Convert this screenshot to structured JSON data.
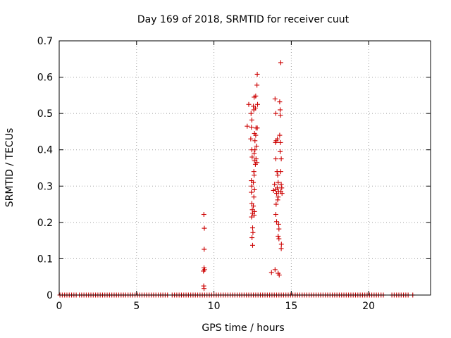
{
  "chart_data": {
    "type": "scatter",
    "title": "Day 169 of 2018, SRMTID for receiver cuut",
    "xlabel": "GPS time / hours",
    "ylabel": "SRMTID / TECUs",
    "xlim": [
      0,
      24
    ],
    "ylim": [
      0,
      0.7
    ],
    "xticks": [
      0,
      5,
      10,
      15,
      20
    ],
    "yticks": [
      0,
      0.1,
      0.2,
      0.3,
      0.4,
      0.5,
      0.6,
      0.7
    ],
    "xtick_labels": [
      "0",
      "5",
      "10",
      "15",
      "20"
    ],
    "ytick_labels": [
      "0",
      "0.1",
      "0.2",
      "0.3",
      "0.4",
      "0.5",
      "0.6",
      "0.7"
    ],
    "grid": true,
    "marker": "+",
    "color": "#cc0000",
    "series": [
      {
        "name": "SRMTID",
        "points": [
          [
            9.35,
            0.222
          ],
          [
            9.38,
            0.184
          ],
          [
            9.37,
            0.126
          ],
          [
            9.36,
            0.075
          ],
          [
            9.32,
            0.066
          ],
          [
            9.4,
            0.07
          ],
          [
            9.34,
            0.025
          ],
          [
            9.36,
            0.018
          ],
          [
            12.15,
            0.465
          ],
          [
            12.25,
            0.525
          ],
          [
            12.4,
            0.5
          ],
          [
            12.45,
            0.482
          ],
          [
            12.42,
            0.462
          ],
          [
            12.38,
            0.43
          ],
          [
            12.45,
            0.4
          ],
          [
            12.47,
            0.38
          ],
          [
            12.42,
            0.315
          ],
          [
            12.44,
            0.3
          ],
          [
            12.42,
            0.283
          ],
          [
            12.45,
            0.252
          ],
          [
            12.48,
            0.235
          ],
          [
            12.5,
            0.225
          ],
          [
            12.43,
            0.215
          ],
          [
            12.5,
            0.185
          ],
          [
            12.52,
            0.172
          ],
          [
            12.46,
            0.158
          ],
          [
            12.5,
            0.137
          ],
          [
            12.55,
            0.52
          ],
          [
            12.58,
            0.51
          ],
          [
            12.6,
            0.545
          ],
          [
            12.62,
            0.445
          ],
          [
            12.65,
            0.425
          ],
          [
            12.6,
            0.39
          ],
          [
            12.62,
            0.37
          ],
          [
            12.58,
            0.34
          ],
          [
            12.6,
            0.33
          ],
          [
            12.55,
            0.31
          ],
          [
            12.62,
            0.29
          ],
          [
            12.58,
            0.27
          ],
          [
            12.55,
            0.245
          ],
          [
            12.62,
            0.23
          ],
          [
            12.6,
            0.22
          ],
          [
            12.68,
            0.515
          ],
          [
            12.7,
            0.548
          ],
          [
            12.72,
            0.46
          ],
          [
            12.7,
            0.44
          ],
          [
            12.75,
            0.41
          ],
          [
            12.72,
            0.375
          ],
          [
            12.68,
            0.36
          ],
          [
            12.65,
            0.4
          ],
          [
            12.8,
            0.608
          ],
          [
            12.78,
            0.578
          ],
          [
            12.82,
            0.525
          ],
          [
            12.8,
            0.46
          ],
          [
            12.78,
            0.365
          ],
          [
            13.72,
            0.062
          ],
          [
            13.95,
            0.07
          ],
          [
            13.85,
            0.288
          ],
          [
            13.92,
            0.305
          ],
          [
            13.95,
            0.54
          ],
          [
            14.0,
            0.5
          ],
          [
            13.98,
            0.42
          ],
          [
            14.02,
            0.425
          ],
          [
            14.0,
            0.375
          ],
          [
            13.98,
            0.29
          ],
          [
            14.05,
            0.28
          ],
          [
            14.02,
            0.25
          ],
          [
            14.0,
            0.222
          ],
          [
            14.05,
            0.202
          ],
          [
            14.1,
            0.43
          ],
          [
            14.08,
            0.34
          ],
          [
            14.12,
            0.33
          ],
          [
            14.15,
            0.31
          ],
          [
            14.1,
            0.295
          ],
          [
            14.18,
            0.285
          ],
          [
            14.15,
            0.27
          ],
          [
            14.12,
            0.262
          ],
          [
            14.18,
            0.195
          ],
          [
            14.2,
            0.182
          ],
          [
            14.15,
            0.162
          ],
          [
            14.2,
            0.155
          ],
          [
            14.22,
            0.055
          ],
          [
            14.15,
            0.06
          ],
          [
            14.25,
            0.532
          ],
          [
            14.28,
            0.51
          ],
          [
            14.3,
            0.495
          ],
          [
            14.25,
            0.44
          ],
          [
            14.3,
            0.42
          ],
          [
            14.28,
            0.395
          ],
          [
            14.35,
            0.375
          ],
          [
            14.32,
            0.34
          ],
          [
            14.35,
            0.305
          ],
          [
            14.38,
            0.295
          ],
          [
            14.32,
            0.285
          ],
          [
            14.4,
            0.28
          ],
          [
            14.36,
            0.14
          ],
          [
            14.35,
            0.128
          ],
          [
            14.32,
            0.64
          ]
        ],
        "zero_baseline_x": [
          0.05,
          0.2,
          0.35,
          0.5,
          0.65,
          0.8,
          0.95,
          1.1,
          1.3,
          1.45,
          1.6,
          1.75,
          1.9,
          2.05,
          2.2,
          2.35,
          2.5,
          2.65,
          2.8,
          2.95,
          3.1,
          3.25,
          3.4,
          3.55,
          3.7,
          3.85,
          4.0,
          4.15,
          4.3,
          4.45,
          4.6,
          4.75,
          4.9,
          5.05,
          5.2,
          5.35,
          5.5,
          5.65,
          5.8,
          5.95,
          6.1,
          6.25,
          6.4,
          6.55,
          6.7,
          6.85,
          7.0,
          7.3,
          7.45,
          7.6,
          7.75,
          7.9,
          8.05,
          8.2,
          8.35,
          8.5,
          8.65,
          8.8,
          8.95,
          9.1,
          9.25,
          9.4,
          9.55,
          9.7,
          9.85,
          10.0,
          10.15,
          10.3,
          10.45,
          10.6,
          10.75,
          10.9,
          11.05,
          11.2,
          11.35,
          11.5,
          11.65,
          11.8,
          11.95,
          12.1,
          12.25,
          12.4,
          12.55,
          12.7,
          12.85,
          13.0,
          13.15,
          13.3,
          13.45,
          13.6,
          13.75,
          13.9,
          14.05,
          14.2,
          14.35,
          14.5,
          14.65,
          14.8,
          14.95,
          15.1,
          15.25,
          15.4,
          15.55,
          15.7,
          15.85,
          16.0,
          16.15,
          16.3,
          16.45,
          16.6,
          16.75,
          16.9,
          17.05,
          17.2,
          17.35,
          17.5,
          17.65,
          17.8,
          17.95,
          18.1,
          18.25,
          18.4,
          18.55,
          18.7,
          18.85,
          19.0,
          19.15,
          19.3,
          19.45,
          19.6,
          19.75,
          19.9,
          20.05,
          20.2,
          20.35,
          20.5,
          20.65,
          20.8,
          20.95,
          21.5,
          21.65,
          21.8,
          21.95,
          22.1,
          22.25,
          22.4,
          22.55,
          22.85
        ]
      }
    ]
  }
}
